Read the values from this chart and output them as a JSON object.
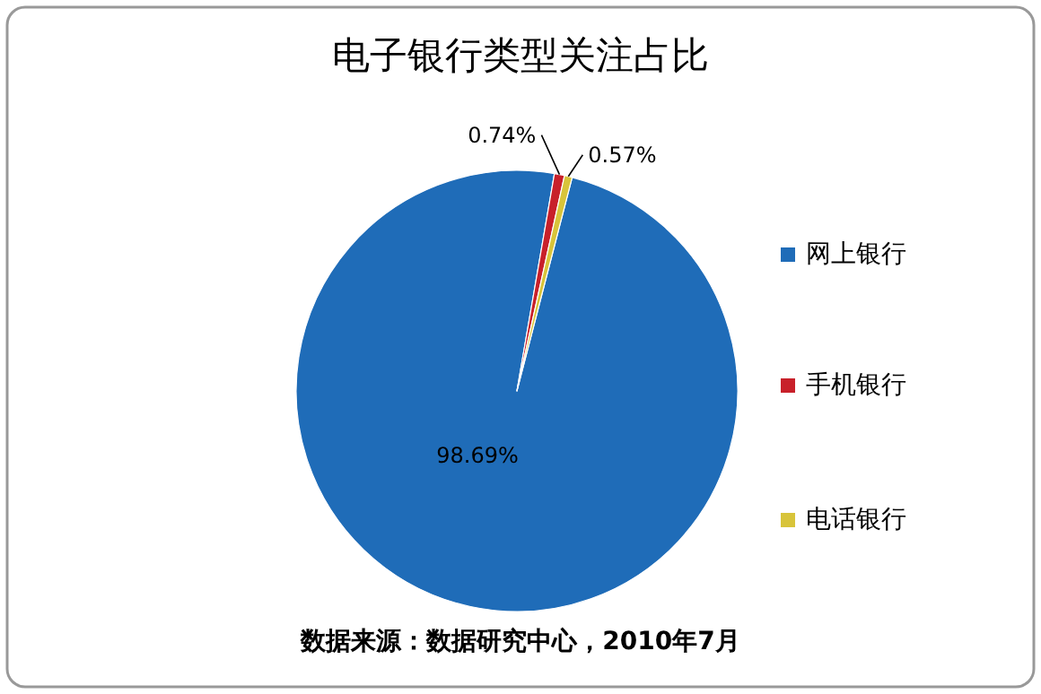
{
  "chart_data": {
    "type": "pie",
    "title": "电子银行类型关注占比",
    "categories": [
      "网上银行",
      "手机银行",
      "电话银行"
    ],
    "values": [
      98.69,
      0.74,
      0.57
    ],
    "colors": [
      "#1f6cb8",
      "#c8202a",
      "#d8c43a"
    ],
    "value_labels": [
      "98.69%",
      "0.74%",
      "0.57%"
    ],
    "legend": "right",
    "annotations": [
      "数据来源：数据研究中心，2010年7月"
    ]
  }
}
